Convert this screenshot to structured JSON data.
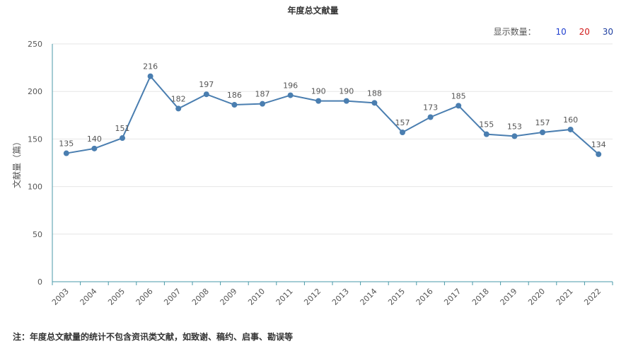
{
  "chart_data": {
    "type": "line",
    "title": "年度总文献量",
    "ylabel": "文献量（篇）",
    "xlabel": "",
    "categories": [
      "2003",
      "2004",
      "2005",
      "2006",
      "2007",
      "2008",
      "2009",
      "2010",
      "2011",
      "2012",
      "2013",
      "2014",
      "2015",
      "2016",
      "2017",
      "2018",
      "2019",
      "2020",
      "2021",
      "2022"
    ],
    "values": [
      135,
      140,
      151,
      216,
      182,
      197,
      186,
      187,
      196,
      190,
      190,
      188,
      157,
      173,
      185,
      155,
      153,
      157,
      160,
      134
    ],
    "ylim": [
      0,
      250
    ],
    "yticks": [
      0,
      50,
      100,
      150,
      200,
      250
    ],
    "grid": true,
    "line_color": "#4a7eb0"
  },
  "display_count": {
    "label": "显示数量：",
    "options": [
      {
        "label": "10",
        "color": "#1f3fcf"
      },
      {
        "label": "20",
        "color": "#d11a1a"
      },
      {
        "label": "30",
        "color": "#1f3fa0"
      }
    ]
  },
  "footnote": "注：年度总文献量的统计不包含资讯类文献，如致谢、稿约、启事、勘误等"
}
